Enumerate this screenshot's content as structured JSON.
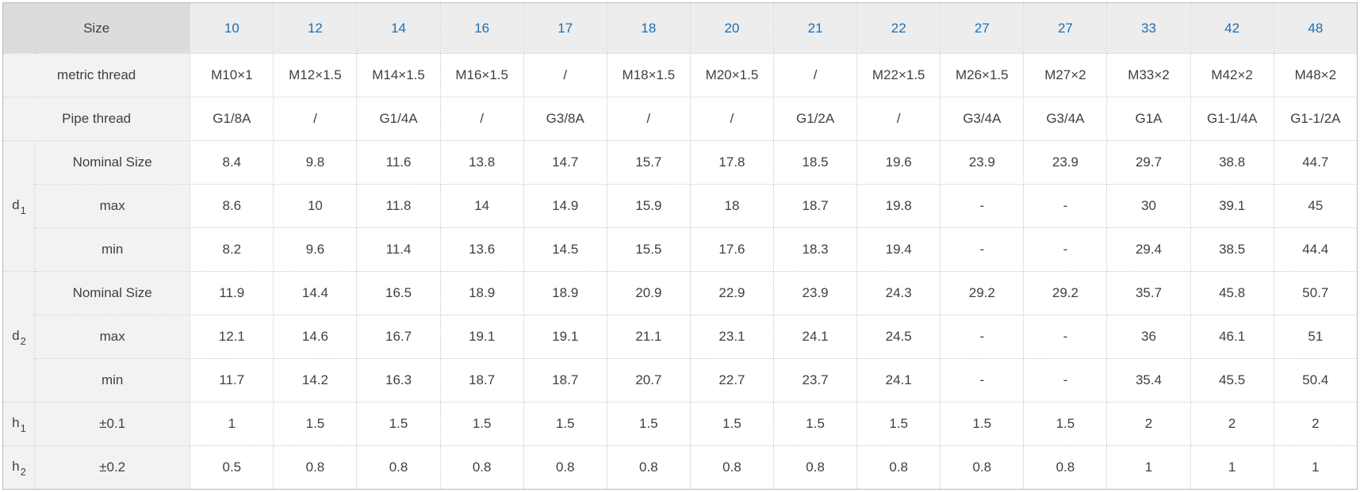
{
  "colors": {
    "header_number_blue": "#1a6fb5",
    "corner_bg": "#dcdcdc",
    "header_bg": "#ededed",
    "label_bg": "#f2f2f2",
    "text": "#404040"
  },
  "table": {
    "corner_label": "Size",
    "columns": [
      "10",
      "12",
      "14",
      "16",
      "17",
      "18",
      "20",
      "21",
      "22",
      "27",
      "27",
      "33",
      "42",
      "48"
    ],
    "rows": [
      {
        "kind": "full",
        "name": "metric-thread",
        "label": "metric thread",
        "values": [
          "M10×1",
          "M12×1.5",
          "M14×1.5",
          "M16×1.5",
          "/",
          "M18×1.5",
          "M20×1.5",
          "/",
          "M22×1.5",
          "M26×1.5",
          "M27×2",
          "M33×2",
          "M42×2",
          "M48×2"
        ]
      },
      {
        "kind": "full",
        "name": "pipe-thread",
        "label": "Pipe thread",
        "values": [
          "G1/8A",
          "/",
          "G1/4A",
          "/",
          "G3/8A",
          "/",
          "/",
          "G1/2A",
          "/",
          "G3/4A",
          "G3/4A",
          "G1A",
          "G1-1/4A",
          "G1-1/2A"
        ]
      },
      {
        "kind": "group-start",
        "name": "d1-nominal",
        "group": "d",
        "group_sub": "1",
        "span": 3,
        "label": "Nominal Size",
        "values": [
          "8.4",
          "9.8",
          "11.6",
          "13.8",
          "14.7",
          "15.7",
          "17.8",
          "18.5",
          "19.6",
          "23.9",
          "23.9",
          "29.7",
          "38.8",
          "44.7"
        ]
      },
      {
        "kind": "sub",
        "name": "d1-max",
        "label": "max",
        "values": [
          "8.6",
          "10",
          "11.8",
          "14",
          "14.9",
          "15.9",
          "18",
          "18.7",
          "19.8",
          "-",
          "-",
          "30",
          "39.1",
          "45"
        ]
      },
      {
        "kind": "sub",
        "name": "d1-min",
        "label": "min",
        "values": [
          "8.2",
          "9.6",
          "11.4",
          "13.6",
          "14.5",
          "15.5",
          "17.6",
          "18.3",
          "19.4",
          "-",
          "-",
          "29.4",
          "38.5",
          "44.4"
        ]
      },
      {
        "kind": "group-start",
        "name": "d2-nominal",
        "group": "d",
        "group_sub": "2",
        "span": 3,
        "label": "Nominal Size",
        "values": [
          "11.9",
          "14.4",
          "16.5",
          "18.9",
          "18.9",
          "20.9",
          "22.9",
          "23.9",
          "24.3",
          "29.2",
          "29.2",
          "35.7",
          "45.8",
          "50.7"
        ]
      },
      {
        "kind": "sub",
        "name": "d2-max",
        "label": "max",
        "values": [
          "12.1",
          "14.6",
          "16.7",
          "19.1",
          "19.1",
          "21.1",
          "23.1",
          "24.1",
          "24.5",
          "-",
          "-",
          "36",
          "46.1",
          "51"
        ]
      },
      {
        "kind": "sub",
        "name": "d2-min",
        "label": "min",
        "values": [
          "11.7",
          "14.2",
          "16.3",
          "18.7",
          "18.7",
          "20.7",
          "22.7",
          "23.7",
          "24.1",
          "-",
          "-",
          "35.4",
          "45.5",
          "50.4"
        ]
      },
      {
        "kind": "group-start",
        "name": "h1",
        "group": "h",
        "group_sub": "1",
        "span": 1,
        "label": "±0.1",
        "values": [
          "1",
          "1.5",
          "1.5",
          "1.5",
          "1.5",
          "1.5",
          "1.5",
          "1.5",
          "1.5",
          "1.5",
          "1.5",
          "2",
          "2",
          "2"
        ]
      },
      {
        "kind": "group-start",
        "name": "h2",
        "group": "h",
        "group_sub": "2",
        "span": 1,
        "label": "±0.2",
        "values": [
          "0.5",
          "0.8",
          "0.8",
          "0.8",
          "0.8",
          "0.8",
          "0.8",
          "0.8",
          "0.8",
          "0.8",
          "0.8",
          "1",
          "1",
          "1"
        ]
      }
    ]
  }
}
